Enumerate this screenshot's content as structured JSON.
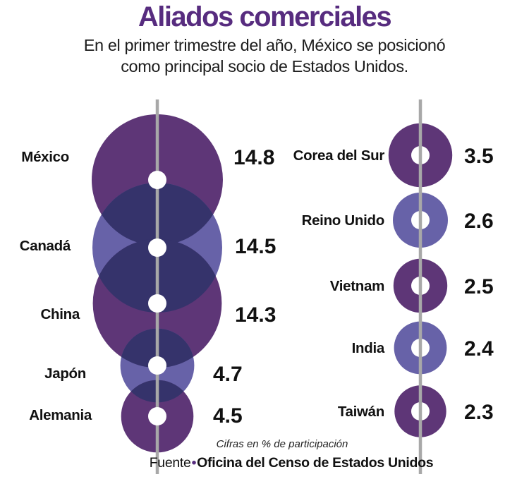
{
  "header": {
    "title": "Aliados comerciales",
    "subtitle_line1": "En el primer trimestre del año, México se posicionó",
    "subtitle_line2": "como principal socio de Estados Unidos."
  },
  "footer": {
    "note": "Cifras en % de participación",
    "source_prefix": "Fuente",
    "source_bullet": "•",
    "source_name": "Oficina del Censo de Estados Unidos"
  },
  "colors": {
    "title": "#572c7f",
    "bubble_dark": "#5e3677",
    "bubble_light": "#6762a8",
    "bubble_overlap": "#35336b",
    "axis_line": "#a8a8a8",
    "center_dot": "#ffffff",
    "text": "#111111"
  },
  "chart_data": {
    "type": "bubble",
    "title": "Aliados comerciales",
    "note": "Cifras en % de participación",
    "unit": "% de participación",
    "source": "Oficina del Censo de Estados Unidos",
    "columns": [
      {
        "name": "principales-socios",
        "items": [
          {
            "label": "México",
            "value": 14.8
          },
          {
            "label": "Canadá",
            "value": 14.5
          },
          {
            "label": "China",
            "value": 14.3
          },
          {
            "label": "Japón",
            "value": 4.7
          },
          {
            "label": "Alemania",
            "value": 4.5
          }
        ]
      },
      {
        "name": "otros-socios",
        "items": [
          {
            "label": "Corea del Sur",
            "value": 3.5
          },
          {
            "label": "Reino Unido",
            "value": 2.6
          },
          {
            "label": "Vietnam",
            "value": 2.5
          },
          {
            "label": "India",
            "value": 2.4
          },
          {
            "label": "Taiwán",
            "value": 2.3
          }
        ]
      }
    ]
  }
}
